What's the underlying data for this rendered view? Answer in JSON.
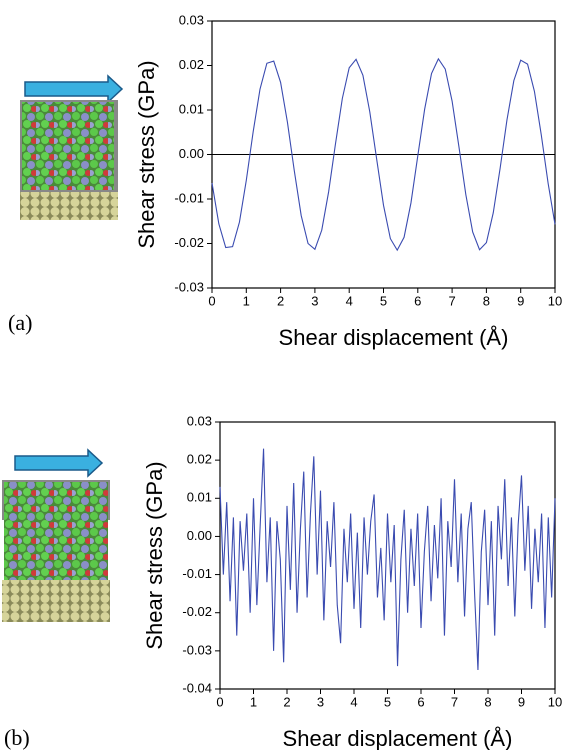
{
  "chart_data": [
    {
      "type": "line",
      "panel_label": "(a)",
      "xlabel": "Shear displacement (Å)",
      "ylabel": "Shear stress (GPa)",
      "color": "#3a4bb0",
      "zero_line": true,
      "x": [
        0,
        0.2,
        0.4,
        0.6,
        0.8,
        1,
        1.2,
        1.4,
        1.6,
        1.8,
        2,
        2.2,
        2.4,
        2.6,
        2.8,
        3,
        3.2,
        3.4,
        3.6,
        3.8,
        4,
        4.2,
        4.4,
        4.6,
        4.8,
        5,
        5.2,
        5.4,
        5.6,
        5.8,
        6,
        6.2,
        6.4,
        6.6,
        6.8,
        7,
        7.2,
        7.4,
        7.6,
        7.8,
        8,
        8.2,
        8.4,
        8.6,
        8.8,
        9,
        9.2,
        9.4,
        9.6,
        9.8,
        10
      ],
      "values": [
        -0.0064,
        -0.0156,
        -0.0209,
        -0.0207,
        -0.0152,
        -0.0058,
        0.0051,
        0.0147,
        0.0205,
        0.021,
        0.0162,
        0.0072,
        -0.0037,
        -0.0137,
        -0.02,
        -0.0213,
        -0.017,
        -0.0084,
        0.0024,
        0.0126,
        0.0195,
        0.0214,
        0.0178,
        0.0096,
        -0.001,
        -0.0114,
        -0.0189,
        -0.0215,
        -0.0186,
        -0.0109,
        -0.0003,
        0.0102,
        0.0182,
        0.0215,
        0.0192,
        0.012,
        0.0017,
        -0.009,
        -0.0174,
        -0.0214,
        -0.0198,
        -0.0131,
        -0.0031,
        0.0078,
        0.0166,
        0.0212,
        0.0203,
        0.0142,
        0.0044,
        -0.0065,
        -0.0157
      ],
      "xlim": [
        0,
        10
      ],
      "xticks": [
        0,
        1,
        2,
        3,
        4,
        5,
        6,
        7,
        8,
        9,
        10
      ],
      "ylim": [
        -0.03,
        0.03
      ],
      "yticks": [
        -0.03,
        -0.02,
        -0.01,
        {
          "value": 0,
          "label": "0.00"
        },
        0.01,
        0.02,
        0.03
      ]
    },
    {
      "type": "line",
      "panel_label": "(b)",
      "xlabel": "Shear displacement (Å)",
      "ylabel": "Shear stress (GPa)",
      "color": "#3a4bb0",
      "zero_line": false,
      "x": [
        0,
        0.1,
        0.2,
        0.3,
        0.4,
        0.5,
        0.6,
        0.7,
        0.8,
        0.9,
        1,
        1.1,
        1.2,
        1.3,
        1.4,
        1.5,
        1.6,
        1.7,
        1.8,
        1.9,
        2,
        2.1,
        2.2,
        2.3,
        2.4,
        2.5,
        2.6,
        2.7,
        2.8,
        2.9,
        3,
        3.1,
        3.2,
        3.3,
        3.4,
        3.5,
        3.6,
        3.7,
        3.8,
        3.9,
        4,
        4.1,
        4.2,
        4.3,
        4.4,
        4.5,
        4.6,
        4.7,
        4.8,
        4.9,
        5,
        5.1,
        5.2,
        5.3,
        5.4,
        5.5,
        5.6,
        5.7,
        5.8,
        5.9,
        6,
        6.1,
        6.2,
        6.3,
        6.4,
        6.5,
        6.6,
        6.7,
        6.8,
        6.9,
        7,
        7.1,
        7.2,
        7.3,
        7.4,
        7.5,
        7.6,
        7.7,
        7.8,
        7.9,
        8,
        8.1,
        8.2,
        8.3,
        8.4,
        8.5,
        8.6,
        8.7,
        8.8,
        8.9,
        9,
        9.1,
        9.2,
        9.3,
        9.4,
        9.5,
        9.6,
        9.7,
        9.8,
        9.9,
        10
      ],
      "values": [
        0.013,
        -0.01,
        0.009,
        -0.017,
        0.005,
        -0.026,
        0.004,
        -0.009,
        0.006,
        -0.02,
        0.01,
        -0.018,
        0.003,
        0.023,
        -0.012,
        0.005,
        -0.03,
        0.004,
        -0.006,
        -0.033,
        0.008,
        -0.014,
        0.014,
        -0.02,
        0.002,
        0.017,
        -0.016,
        0.006,
        0.021,
        -0.01,
        0.012,
        -0.022,
        0.004,
        -0.008,
        0.009,
        -0.018,
        -0.028,
        0.002,
        -0.012,
        0.006,
        -0.019,
        0.001,
        -0.024,
        0.005,
        -0.01,
        0.004,
        0.011,
        -0.016,
        -0.003,
        -0.022,
        0.006,
        -0.012,
        0.003,
        -0.034,
        -0.006,
        0.007,
        -0.02,
        0.002,
        -0.013,
        0.006,
        -0.024,
        -0.004,
        0.008,
        -0.017,
        0.003,
        -0.011,
        0.01,
        -0.026,
        0.004,
        -0.008,
        0.015,
        -0.012,
        0.006,
        -0.021,
        0.002,
        0.009,
        -0.015,
        -0.035,
        -0.004,
        0.007,
        -0.018,
        0.004,
        -0.026,
        0.008,
        -0.006,
        0.015,
        -0.013,
        0.005,
        -0.021,
        0.003,
        0.016,
        -0.009,
        0.008,
        -0.019,
        0.002,
        -0.012,
        0.006,
        -0.024,
        0.005,
        -0.016,
        0.01
      ],
      "xlim": [
        0,
        10
      ],
      "xticks": [
        0,
        1,
        2,
        3,
        4,
        5,
        6,
        7,
        8,
        9,
        10
      ],
      "ylim": [
        -0.04,
        0.03
      ],
      "yticks": [
        -0.04,
        -0.03,
        -0.02,
        -0.01,
        {
          "value": 0,
          "label": "0.00"
        },
        0.01,
        0.02,
        0.03
      ]
    }
  ]
}
